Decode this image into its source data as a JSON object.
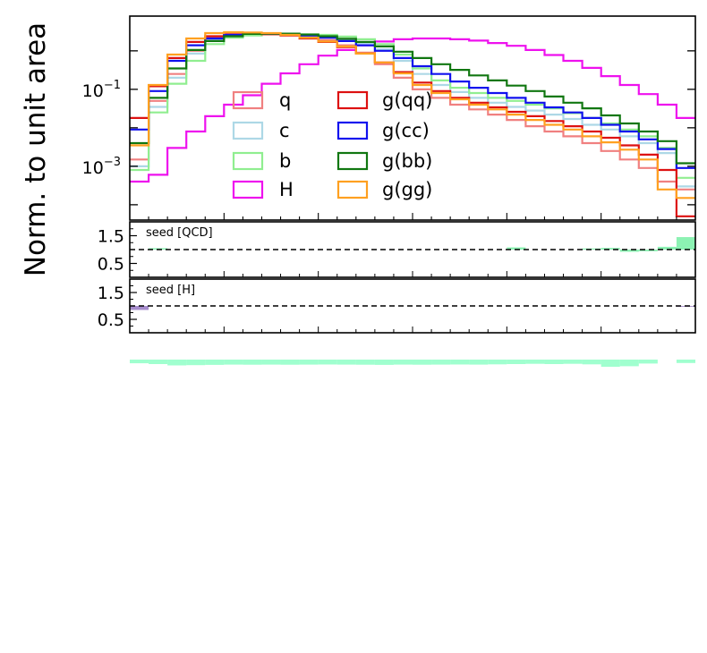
{
  "chart_data": {
    "type": "step-histogram",
    "ylabel": "Norm. to unit area",
    "xlabel": "",
    "yscale": "log",
    "ylim": [
      4e-05,
      8
    ],
    "y_tick_labels": [
      {
        "value": 0.1,
        "base": "10",
        "exp": "−1"
      },
      {
        "value": 0.001,
        "base": "10",
        "exp": "−3"
      }
    ],
    "n_bins": 30,
    "legend_placement": "center",
    "series": [
      {
        "name": "q",
        "color": "#f08080",
        "values": [
          0.0015,
          0.05,
          0.25,
          1.0,
          2.2,
          2.6,
          2.7,
          2.7,
          2.6,
          2.3,
          1.9,
          1.4,
          0.9,
          0.45,
          0.2,
          0.1,
          0.06,
          0.04,
          0.03,
          0.022,
          0.016,
          0.011,
          0.008,
          0.006,
          0.004,
          0.0025,
          0.0015,
          0.0009,
          0.0004,
          0.00025
        ]
      },
      {
        "name": "c",
        "color": "#add8e6",
        "values": [
          0.001,
          0.035,
          0.2,
          0.85,
          2.0,
          2.5,
          2.7,
          2.75,
          2.7,
          2.5,
          2.3,
          2.0,
          1.6,
          1.1,
          0.55,
          0.25,
          0.13,
          0.085,
          0.06,
          0.045,
          0.035,
          0.028,
          0.022,
          0.017,
          0.012,
          0.009,
          0.006,
          0.004,
          0.0022,
          0.0003
        ]
      },
      {
        "name": "b",
        "color": "#90ee90",
        "values": [
          0.0008,
          0.025,
          0.14,
          0.55,
          1.5,
          2.2,
          2.5,
          2.7,
          2.75,
          2.7,
          2.6,
          2.35,
          2.0,
          1.5,
          0.8,
          0.35,
          0.17,
          0.11,
          0.08,
          0.06,
          0.05,
          0.04,
          0.032,
          0.024,
          0.018,
          0.013,
          0.009,
          0.006,
          0.003,
          0.0005
        ]
      },
      {
        "name": "H",
        "color": "#ee11ee",
        "values": [
          0.0004,
          0.0006,
          0.003,
          0.008,
          0.02,
          0.04,
          0.07,
          0.14,
          0.26,
          0.45,
          0.75,
          1.05,
          1.4,
          1.75,
          2.0,
          2.1,
          2.1,
          2.0,
          1.85,
          1.6,
          1.35,
          1.05,
          0.78,
          0.55,
          0.36,
          0.22,
          0.13,
          0.075,
          0.04,
          0.018
        ]
      },
      {
        "name": "g(qq)",
        "color": "#dd1111",
        "values": [
          0.018,
          0.12,
          0.65,
          1.7,
          2.4,
          2.7,
          2.75,
          2.7,
          2.5,
          2.1,
          1.7,
          1.25,
          0.85,
          0.5,
          0.28,
          0.15,
          0.09,
          0.06,
          0.045,
          0.034,
          0.026,
          0.02,
          0.015,
          0.011,
          0.008,
          0.0055,
          0.0035,
          0.002,
          0.0008,
          5e-05
        ]
      },
      {
        "name": "g(cc)",
        "color": "#1111ee",
        "values": [
          0.009,
          0.09,
          0.55,
          1.4,
          2.1,
          2.6,
          2.8,
          2.8,
          2.7,
          2.5,
          2.2,
          1.8,
          1.4,
          1.0,
          0.65,
          0.4,
          0.25,
          0.16,
          0.11,
          0.08,
          0.06,
          0.045,
          0.034,
          0.025,
          0.018,
          0.012,
          0.008,
          0.005,
          0.0028,
          0.0009
        ]
      },
      {
        "name": "g(bb)",
        "color": "#117711",
        "values": [
          0.004,
          0.06,
          0.35,
          1.05,
          1.8,
          2.4,
          2.75,
          2.8,
          2.8,
          2.65,
          2.4,
          2.05,
          1.7,
          1.3,
          0.95,
          0.65,
          0.45,
          0.32,
          0.23,
          0.17,
          0.125,
          0.09,
          0.065,
          0.045,
          0.032,
          0.021,
          0.013,
          0.008,
          0.0045,
          0.0012
        ]
      },
      {
        "name": "g(gg)",
        "color": "#ffa020",
        "values": [
          0.0035,
          0.13,
          0.8,
          2.1,
          2.9,
          3.05,
          3.0,
          2.9,
          2.6,
          2.2,
          1.75,
          1.3,
          0.85,
          0.5,
          0.26,
          0.13,
          0.08,
          0.055,
          0.04,
          0.03,
          0.022,
          0.016,
          0.012,
          0.009,
          0.006,
          0.0042,
          0.0027,
          0.0015,
          0.00025,
          0.00015
        ]
      }
    ],
    "ratio_panels": [
      {
        "label": "seed [QCD]",
        "ylim": [
          0.0,
          2.0
        ],
        "y_tick_labels": [
          "1.5",
          "0.5"
        ],
        "y_tick_values": [
          1.5,
          0.5
        ],
        "reference_line": 1.0,
        "fill_color": "#66ee99",
        "values": [
          1.0,
          1.05,
          1.0,
          1.0,
          1.0,
          1.0,
          1.0,
          1.0,
          1.0,
          1.0,
          1.0,
          1.0,
          1.0,
          1.0,
          1.0,
          1.0,
          1.0,
          1.0,
          1.0,
          1.0,
          1.08,
          1.0,
          1.0,
          1.0,
          1.04,
          1.06,
          0.92,
          0.94,
          1.1,
          1.45
        ]
      },
      {
        "label": "seed [H]",
        "ylim": [
          0.0,
          2.0
        ],
        "y_tick_labels": [
          "1.5",
          "0.5"
        ],
        "y_tick_values": [
          1.5,
          0.5
        ],
        "reference_line": 1.0,
        "fill_color": "#8866bb",
        "values": [
          0.85,
          1.0,
          1.0,
          1.0,
          1.0,
          1.0,
          1.0,
          1.0,
          1.0,
          1.0,
          1.0,
          1.0,
          1.0,
          1.0,
          1.0,
          1.0,
          1.0,
          1.0,
          1.0,
          1.0,
          1.0,
          1.0,
          1.0,
          1.0,
          1.0,
          1.0,
          1.0,
          1.0,
          1.0,
          0.97
        ]
      }
    ],
    "stray_strip": {
      "color": "#77ffbb",
      "values": [
        0.35,
        0.5,
        0.75,
        0.7,
        0.65,
        0.6,
        0.62,
        0.6,
        0.62,
        0.6,
        0.58,
        0.6,
        0.62,
        0.65,
        0.6,
        0.62,
        0.6,
        0.58,
        0.6,
        0.55,
        0.5,
        0.45,
        0.5,
        0.45,
        0.55,
        1.0,
        0.9,
        0.4,
        0.0,
        0.3
      ]
    }
  }
}
